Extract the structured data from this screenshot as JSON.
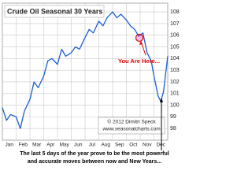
{
  "chart_data": {
    "type": "line",
    "title": "Crude Oil Seasonal 30 Years",
    "annotation": "You Are Here...",
    "copyright": "© 2012 Dimitri Speck",
    "website": "www.seasonalcharts.com",
    "caption": [
      "The last 5 days of the year prove to be the most powerful",
      "and accurate moves between now and New Years..."
    ],
    "categories": [
      "Jan",
      "Feb",
      "Mar",
      "Apr",
      "May",
      "Jun",
      "Jul",
      "Aug",
      "Sep",
      "Oct",
      "Nov",
      "Dec"
    ],
    "xlim": [
      0,
      12
    ],
    "ylim": [
      97,
      108.75
    ],
    "yticks": [
      98,
      99,
      100,
      101,
      102,
      103,
      104,
      105,
      106,
      107,
      108
    ],
    "grid": true,
    "series": [
      {
        "color": "#1a5fd0",
        "x": [
          0,
          0.3,
          0.6,
          1.0,
          1.3,
          1.6,
          2.0,
          2.3,
          2.6,
          3.0,
          3.3,
          3.6,
          4.0,
          4.3,
          4.6,
          5.0,
          5.3,
          5.6,
          6.0,
          6.3,
          6.6,
          7.0,
          7.3,
          7.6,
          8.0,
          8.3,
          8.6,
          9.0,
          9.3,
          9.6,
          9.9,
          10.2,
          10.5,
          10.8,
          11.0,
          11.3,
          11.5,
          11.7,
          12.0
        ],
        "values": [
          99.8,
          98.7,
          99.2,
          99.0,
          98.0,
          99.5,
          100.5,
          102.0,
          101.5,
          102.5,
          103.8,
          104.0,
          103.5,
          104.8,
          104.2,
          104.5,
          105.0,
          104.8,
          105.8,
          106.5,
          106.2,
          107.2,
          106.8,
          107.5,
          108.0,
          107.5,
          107.8,
          107.3,
          106.8,
          106.5,
          105.9,
          106.2,
          104.5,
          103.8,
          102.5,
          100.8,
          100.3,
          101.2,
          104.2
        ]
      }
    ]
  }
}
